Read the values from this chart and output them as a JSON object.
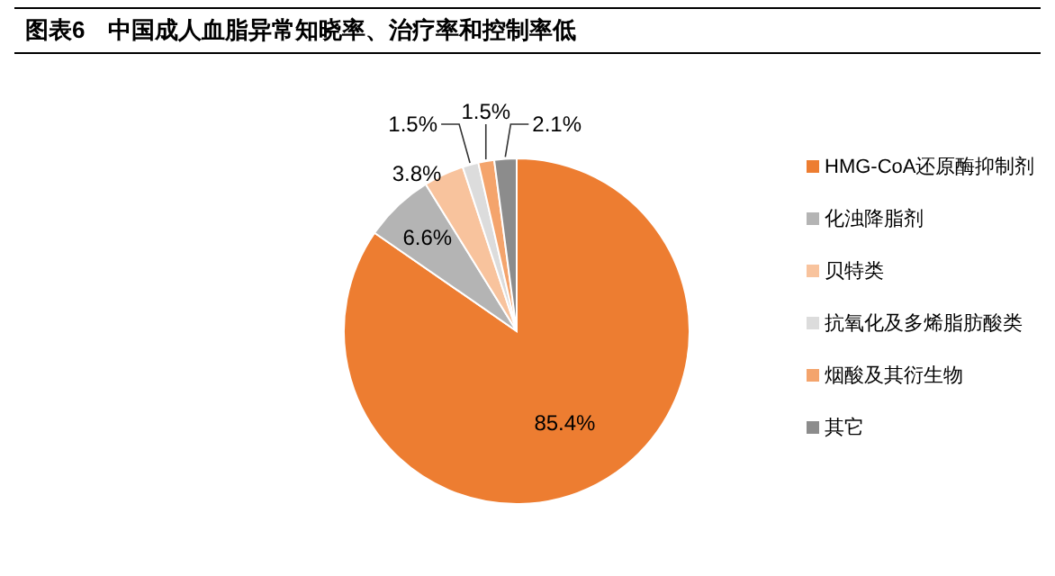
{
  "chart_data": {
    "type": "pie",
    "title": "图表6　中国成人血脂异常知晓率、治疗率和控制率低",
    "categories": [
      "HMG-CoA还原酶抑制剂",
      "化浊降脂剂",
      "贝特类",
      "抗氧化及多烯脂肪酸类",
      "烟酸及其衍生物",
      "其它"
    ],
    "values": [
      85.4,
      6.6,
      3.8,
      1.5,
      1.5,
      2.1
    ],
    "colors": [
      "#ed7d31",
      "#b4b4b4",
      "#f8c39d",
      "#dcdcdc",
      "#f4a46c",
      "#8c8c8c"
    ],
    "value_labels": [
      "85.4%",
      "6.6%",
      "3.8%",
      "1.5%",
      "1.5%",
      "2.1%"
    ],
    "legend": "right"
  }
}
